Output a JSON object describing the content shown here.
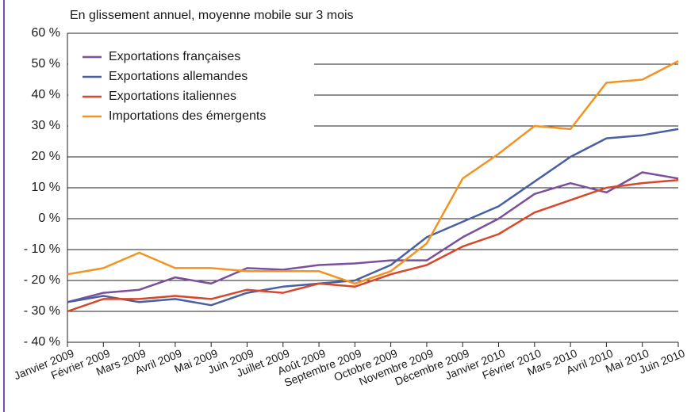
{
  "chart_data": {
    "type": "line",
    "title": "En glissement annuel, moyenne mobile sur 3 mois",
    "categories": [
      "Janvier 2009",
      "Février 2009",
      "Mars 2009",
      "Avril 2009",
      "Mai 2009",
      "Juin 2009",
      "Juillet 2009",
      "Août 2009",
      "Septembre 2009",
      "Octobre 2009",
      "Novembre 2009",
      "Décembre 2009",
      "Janvier 2010",
      "Février 2010",
      "Mars 2010",
      "Avril 2010",
      "Mai 2010",
      "Juin 2010"
    ],
    "series": [
      {
        "name": "Exportations françaises",
        "color": "#7b4f9d",
        "values": [
          -27,
          -24,
          -23,
          -19,
          -21,
          -16,
          -16.5,
          -15,
          -14.5,
          -13.5,
          -13.5,
          -6,
          0,
          8,
          11.5,
          8.5,
          15,
          13
        ]
      },
      {
        "name": "Exportations allemandes",
        "color": "#4a5fa0",
        "values": [
          -27,
          -25,
          -27,
          -26,
          -28,
          -24,
          -22,
          -21,
          -20,
          -15,
          -6,
          -1,
          4,
          12,
          20,
          26,
          27,
          29
        ]
      },
      {
        "name": "Exportations italiennes",
        "color": "#d9472b",
        "values": [
          -30,
          -26,
          -26,
          -25,
          -26,
          -23,
          -24,
          -21,
          -22,
          -18,
          -15,
          -9,
          -5,
          2,
          6,
          10,
          11.5,
          12.5
        ]
      },
      {
        "name": "Importations des émergents",
        "color": "#f39322",
        "values": [
          -18,
          -16,
          -11,
          -16,
          -16,
          -17,
          -17,
          -17,
          -21,
          -17,
          -8,
          13,
          21,
          30,
          29,
          44,
          45,
          51
        ]
      }
    ],
    "ylim": [
      -40,
      60
    ],
    "yticks": [
      {
        "value": 60,
        "label": "60 %"
      },
      {
        "value": 50,
        "label": "50 %"
      },
      {
        "value": 40,
        "label": "40 %"
      },
      {
        "value": 30,
        "label": "30 %"
      },
      {
        "value": 20,
        "label": "20 %"
      },
      {
        "value": 10,
        "label": "10 %"
      },
      {
        "value": 0,
        "label": "0 %"
      },
      {
        "value": -10,
        "label": "- 10 %"
      },
      {
        "value": -20,
        "label": "- 20 %"
      },
      {
        "value": -30,
        "label": "- 30 %"
      },
      {
        "value": -40,
        "label": "- 40 %"
      }
    ],
    "grid": true,
    "legend": "upper left"
  }
}
